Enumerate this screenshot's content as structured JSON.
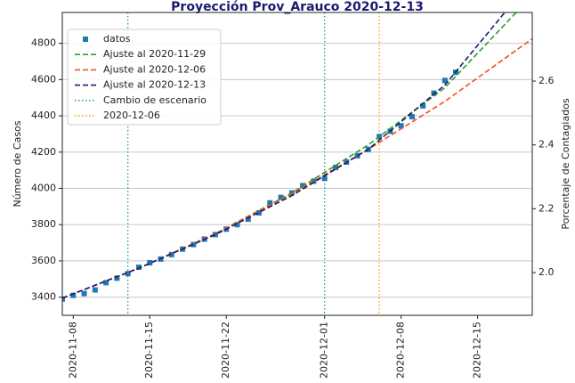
{
  "chart_data": {
    "type": "line",
    "title": "Proyección Prov_Arauco 2020-12-13",
    "ylabel": "Número de Casos",
    "y2label": "Porcentaje de Contagiados",
    "xlim": [
      "2020-11-07",
      "2020-12-20"
    ],
    "xticks": [
      "2020-11-08",
      "2020-11-15",
      "2020-11-22",
      "2020-12-01",
      "2020-12-08",
      "2020-12-15"
    ],
    "ylim": [
      3300,
      4970
    ],
    "yticks": [
      3400,
      3600,
      3800,
      4000,
      4200,
      4400,
      4600,
      4800
    ],
    "y2lim": [
      1.866,
      2.815
    ],
    "y2ticks": [
      {
        "value": 2,
        "label": "2.0"
      },
      2.2,
      2.4,
      2.6
    ],
    "grid": "y",
    "legend": "upper left",
    "series": [
      {
        "name": "datos",
        "color": "#1f77b4",
        "marker": "square",
        "linestyle": "none",
        "x": [
          "2020-11-07",
          "2020-11-08",
          "2020-11-09",
          "2020-11-10",
          "2020-11-11",
          "2020-11-12",
          "2020-11-13",
          "2020-11-14",
          "2020-11-15",
          "2020-11-16",
          "2020-11-17",
          "2020-11-18",
          "2020-11-19",
          "2020-11-20",
          "2020-11-21",
          "2020-11-22",
          "2020-11-23",
          "2020-11-24",
          "2020-11-25",
          "2020-11-26",
          "2020-11-27",
          "2020-11-28",
          "2020-11-29",
          "2020-11-30",
          "2020-12-01",
          "2020-12-02",
          "2020-12-03",
          "2020-12-04",
          "2020-12-05",
          "2020-12-06",
          "2020-12-07",
          "2020-12-08",
          "2020-12-09",
          "2020-12-10",
          "2020-12-11",
          "2020-12-12",
          "2020-12-13"
        ],
        "values": [
          3390,
          3410,
          3420,
          3440,
          3480,
          3505,
          3530,
          3565,
          3590,
          3610,
          3635,
          3665,
          3690,
          3720,
          3745,
          3775,
          3800,
          3830,
          3865,
          3920,
          3950,
          3975,
          4015,
          4040,
          4055,
          4115,
          4145,
          4180,
          4215,
          4285,
          4315,
          4345,
          4395,
          4455,
          4525,
          4595,
          4640
        ]
      },
      {
        "name": "Ajuste al 2020-11-29",
        "color": "#2ca02c",
        "linestyle": "dashed",
        "x": [
          "2020-11-07",
          "2020-11-14",
          "2020-11-21",
          "2020-11-28",
          "2020-12-05",
          "2020-12-12",
          "2020-12-19"
        ],
        "values": [
          3395,
          3560,
          3750,
          3975,
          4240,
          4555,
          5000
        ]
      },
      {
        "name": "Ajuste al 2020-12-06",
        "color": "#f4511e",
        "linestyle": "dashed",
        "x": [
          "2020-11-07",
          "2020-11-14",
          "2020-11-21",
          "2020-11-28",
          "2020-12-05",
          "2020-12-12",
          "2020-12-20"
        ],
        "values": [
          3395,
          3560,
          3750,
          3970,
          4215,
          4480,
          4825
        ]
      },
      {
        "name": "Ajuste al 2020-12-13",
        "color": "#1a1a6e",
        "linestyle": "dashed",
        "x": [
          "2020-11-07",
          "2020-11-14",
          "2020-11-21",
          "2020-11-28",
          "2020-12-05",
          "2020-12-12",
          "2020-12-19"
        ],
        "values": [
          3395,
          3560,
          3745,
          3960,
          4215,
          4570,
          5080
        ]
      }
    ],
    "vlines": [
      {
        "name": "Cambio de escenario",
        "color": "#1f9aaa",
        "linestyle": "dotted",
        "x": [
          "2020-11-13",
          "2020-12-01"
        ]
      },
      {
        "name": "2020-12-06",
        "color": "#ff9900",
        "linestyle": "dotted",
        "x": [
          "2020-12-06"
        ]
      }
    ]
  }
}
